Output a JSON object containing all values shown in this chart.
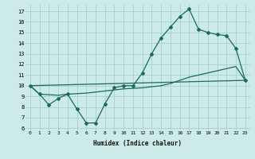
{
  "xlabel": "Humidex (Indice chaleur)",
  "bg_color": "#cceae7",
  "grid_color": "#aad4d0",
  "line_color": "#1a6b5a",
  "xlim": [
    -0.5,
    23.5
  ],
  "ylim": [
    5.8,
    17.6
  ],
  "xticks": [
    0,
    1,
    2,
    3,
    4,
    5,
    6,
    7,
    8,
    9,
    10,
    11,
    12,
    13,
    14,
    15,
    16,
    17,
    18,
    19,
    20,
    21,
    22,
    23
  ],
  "yticks": [
    6,
    7,
    8,
    9,
    10,
    11,
    12,
    13,
    14,
    15,
    16,
    17
  ],
  "line1_x": [
    0,
    1,
    2,
    3,
    4,
    5,
    6,
    7,
    8,
    9,
    10,
    11,
    12,
    13,
    14,
    15,
    16,
    17,
    18,
    19,
    20,
    21,
    22,
    23
  ],
  "line1_y": [
    10.0,
    9.2,
    8.2,
    8.8,
    9.2,
    7.8,
    6.5,
    6.5,
    8.3,
    9.8,
    10.0,
    10.0,
    11.2,
    13.0,
    14.5,
    15.5,
    16.5,
    17.2,
    15.3,
    15.0,
    14.8,
    14.7,
    13.5,
    10.5
  ],
  "line2_x": [
    0,
    1,
    2,
    3,
    4,
    5,
    6,
    7,
    8,
    9,
    10,
    11,
    12,
    13,
    14,
    15,
    16,
    17,
    18,
    19,
    20,
    21,
    22,
    23
  ],
  "line2_y": [
    10.0,
    9.2,
    9.15,
    9.1,
    9.2,
    9.25,
    9.3,
    9.4,
    9.5,
    9.6,
    9.7,
    9.75,
    9.8,
    9.9,
    10.0,
    10.2,
    10.5,
    10.8,
    11.0,
    11.2,
    11.4,
    11.6,
    11.8,
    10.5
  ],
  "line3_x": [
    0,
    23
  ],
  "line3_y": [
    10.0,
    10.5
  ]
}
